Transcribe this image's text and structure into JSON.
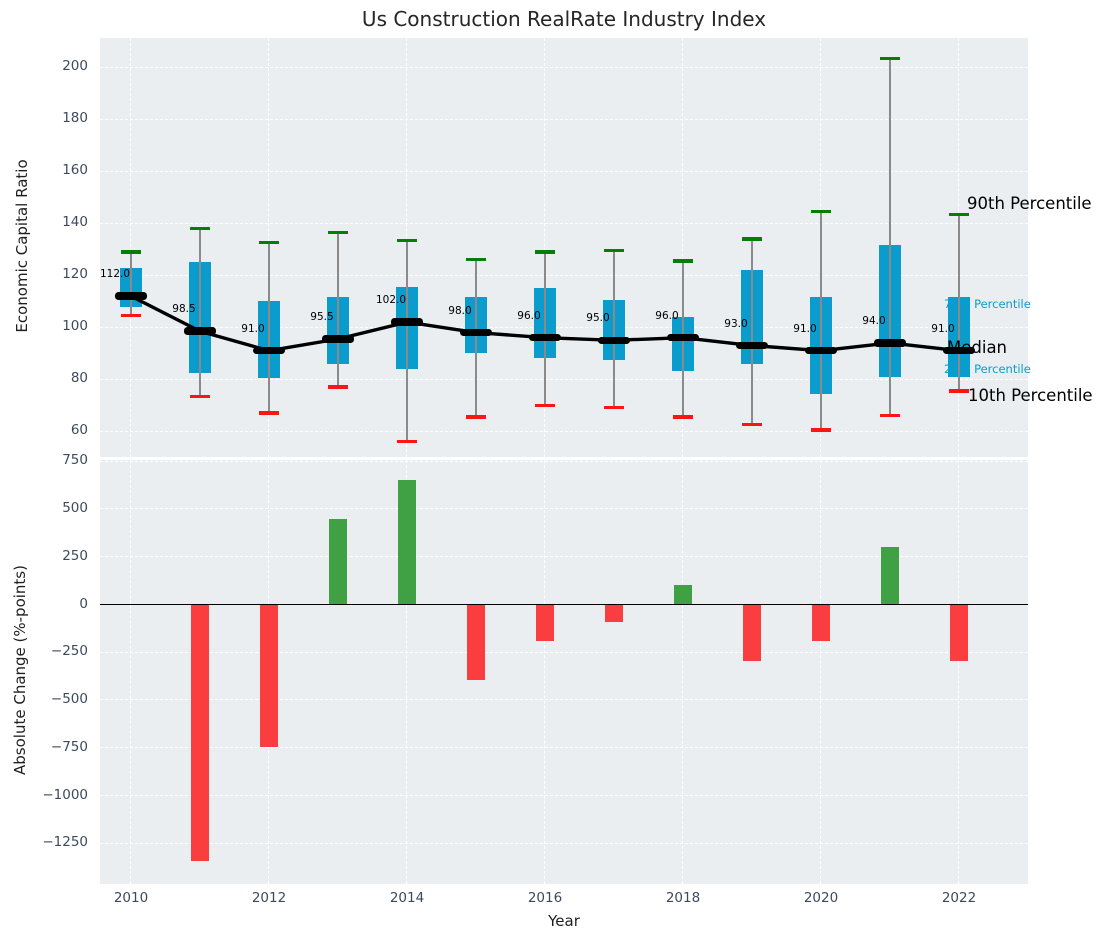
{
  "title": "Us Construction RealRate Industry Index",
  "colors": {
    "plot_bg": "#eaeef1",
    "grid": "#ffffff",
    "tick_label": "#3d4a5d",
    "box_blue": "#0b9cce",
    "whisker_gray": "#8a8a8a",
    "p90_green": "#067d06",
    "p10_red": "#fb1515",
    "median_black": "#000000",
    "bar_positive_green": "#3fa044",
    "bar_negative_red": "#fa3d3f"
  },
  "chart_data": [
    {
      "type": "boxplot",
      "panel": "top",
      "title": "Us Construction RealRate Industry Index",
      "ylabel": "Economic Capital Ratio",
      "ylim": [
        50.3,
        211.3
      ],
      "yticks": [
        200,
        180,
        160,
        140,
        120,
        100,
        80,
        60
      ],
      "grid": true,
      "years": [
        2010,
        2011,
        2012,
        2013,
        2014,
        2015,
        2016,
        2017,
        2018,
        2019,
        2020,
        2021,
        2022
      ],
      "series": {
        "median": [
          112.0,
          98.5,
          91.0,
          95.5,
          102.0,
          98.0,
          96.0,
          95.0,
          96.0,
          93.0,
          91.0,
          94.0,
          91.0
        ],
        "p75": [
          123.0,
          125.0,
          110.0,
          111.5,
          115.5,
          111.5,
          115.0,
          110.5,
          104.0,
          122.0,
          111.5,
          131.5,
          111.5
        ],
        "p25": [
          108.0,
          82.5,
          80.5,
          86.0,
          84.0,
          90.0,
          88.0,
          87.5,
          83.0,
          86.0,
          74.5,
          81.0,
          81.0
        ],
        "p90": [
          129.0,
          138.0,
          132.5,
          136.5,
          133.5,
          126.0,
          129.0,
          129.5,
          125.5,
          134.0,
          144.5,
          203.5,
          143.5
        ],
        "p10": [
          104.5,
          73.5,
          67.0,
          77.0,
          56.0,
          65.5,
          70.0,
          69.0,
          65.5,
          62.5,
          60.5,
          66.0,
          75.5
        ]
      },
      "median_labels": [
        "112.0",
        "98.5",
        "91.0",
        "95.5",
        "102.0",
        "98.0",
        "96.0",
        "95.0",
        "96.0",
        "93.0",
        "91.0",
        "94.0",
        "91.0"
      ],
      "annotations": [
        {
          "label": "90th Percentile",
          "style": "black"
        },
        {
          "label": "75th Percentile",
          "style": "blue"
        },
        {
          "label": "Median",
          "style": "black"
        },
        {
          "label": "25th Percentile",
          "style": "blue"
        },
        {
          "label": "10th Percentile",
          "style": "black"
        }
      ]
    },
    {
      "type": "bar",
      "panel": "bottom",
      "ylabel": "Absolute Change (%-points)",
      "xlabel": "Year",
      "ylim": [
        -1462.7,
        758.9
      ],
      "yticks": [
        750,
        500,
        250,
        0,
        -250,
        -500,
        -750,
        -1000,
        -1250
      ],
      "xticks": [
        2010,
        2012,
        2014,
        2016,
        2018,
        2020,
        2022
      ],
      "grid": true,
      "years": [
        2011,
        2012,
        2013,
        2014,
        2015,
        2016,
        2017,
        2018,
        2019,
        2020,
        2021,
        2022
      ],
      "values": [
        -1340,
        -745,
        445,
        650,
        -395,
        -190,
        -90,
        100,
        -295,
        -190,
        300,
        -295
      ]
    }
  ]
}
